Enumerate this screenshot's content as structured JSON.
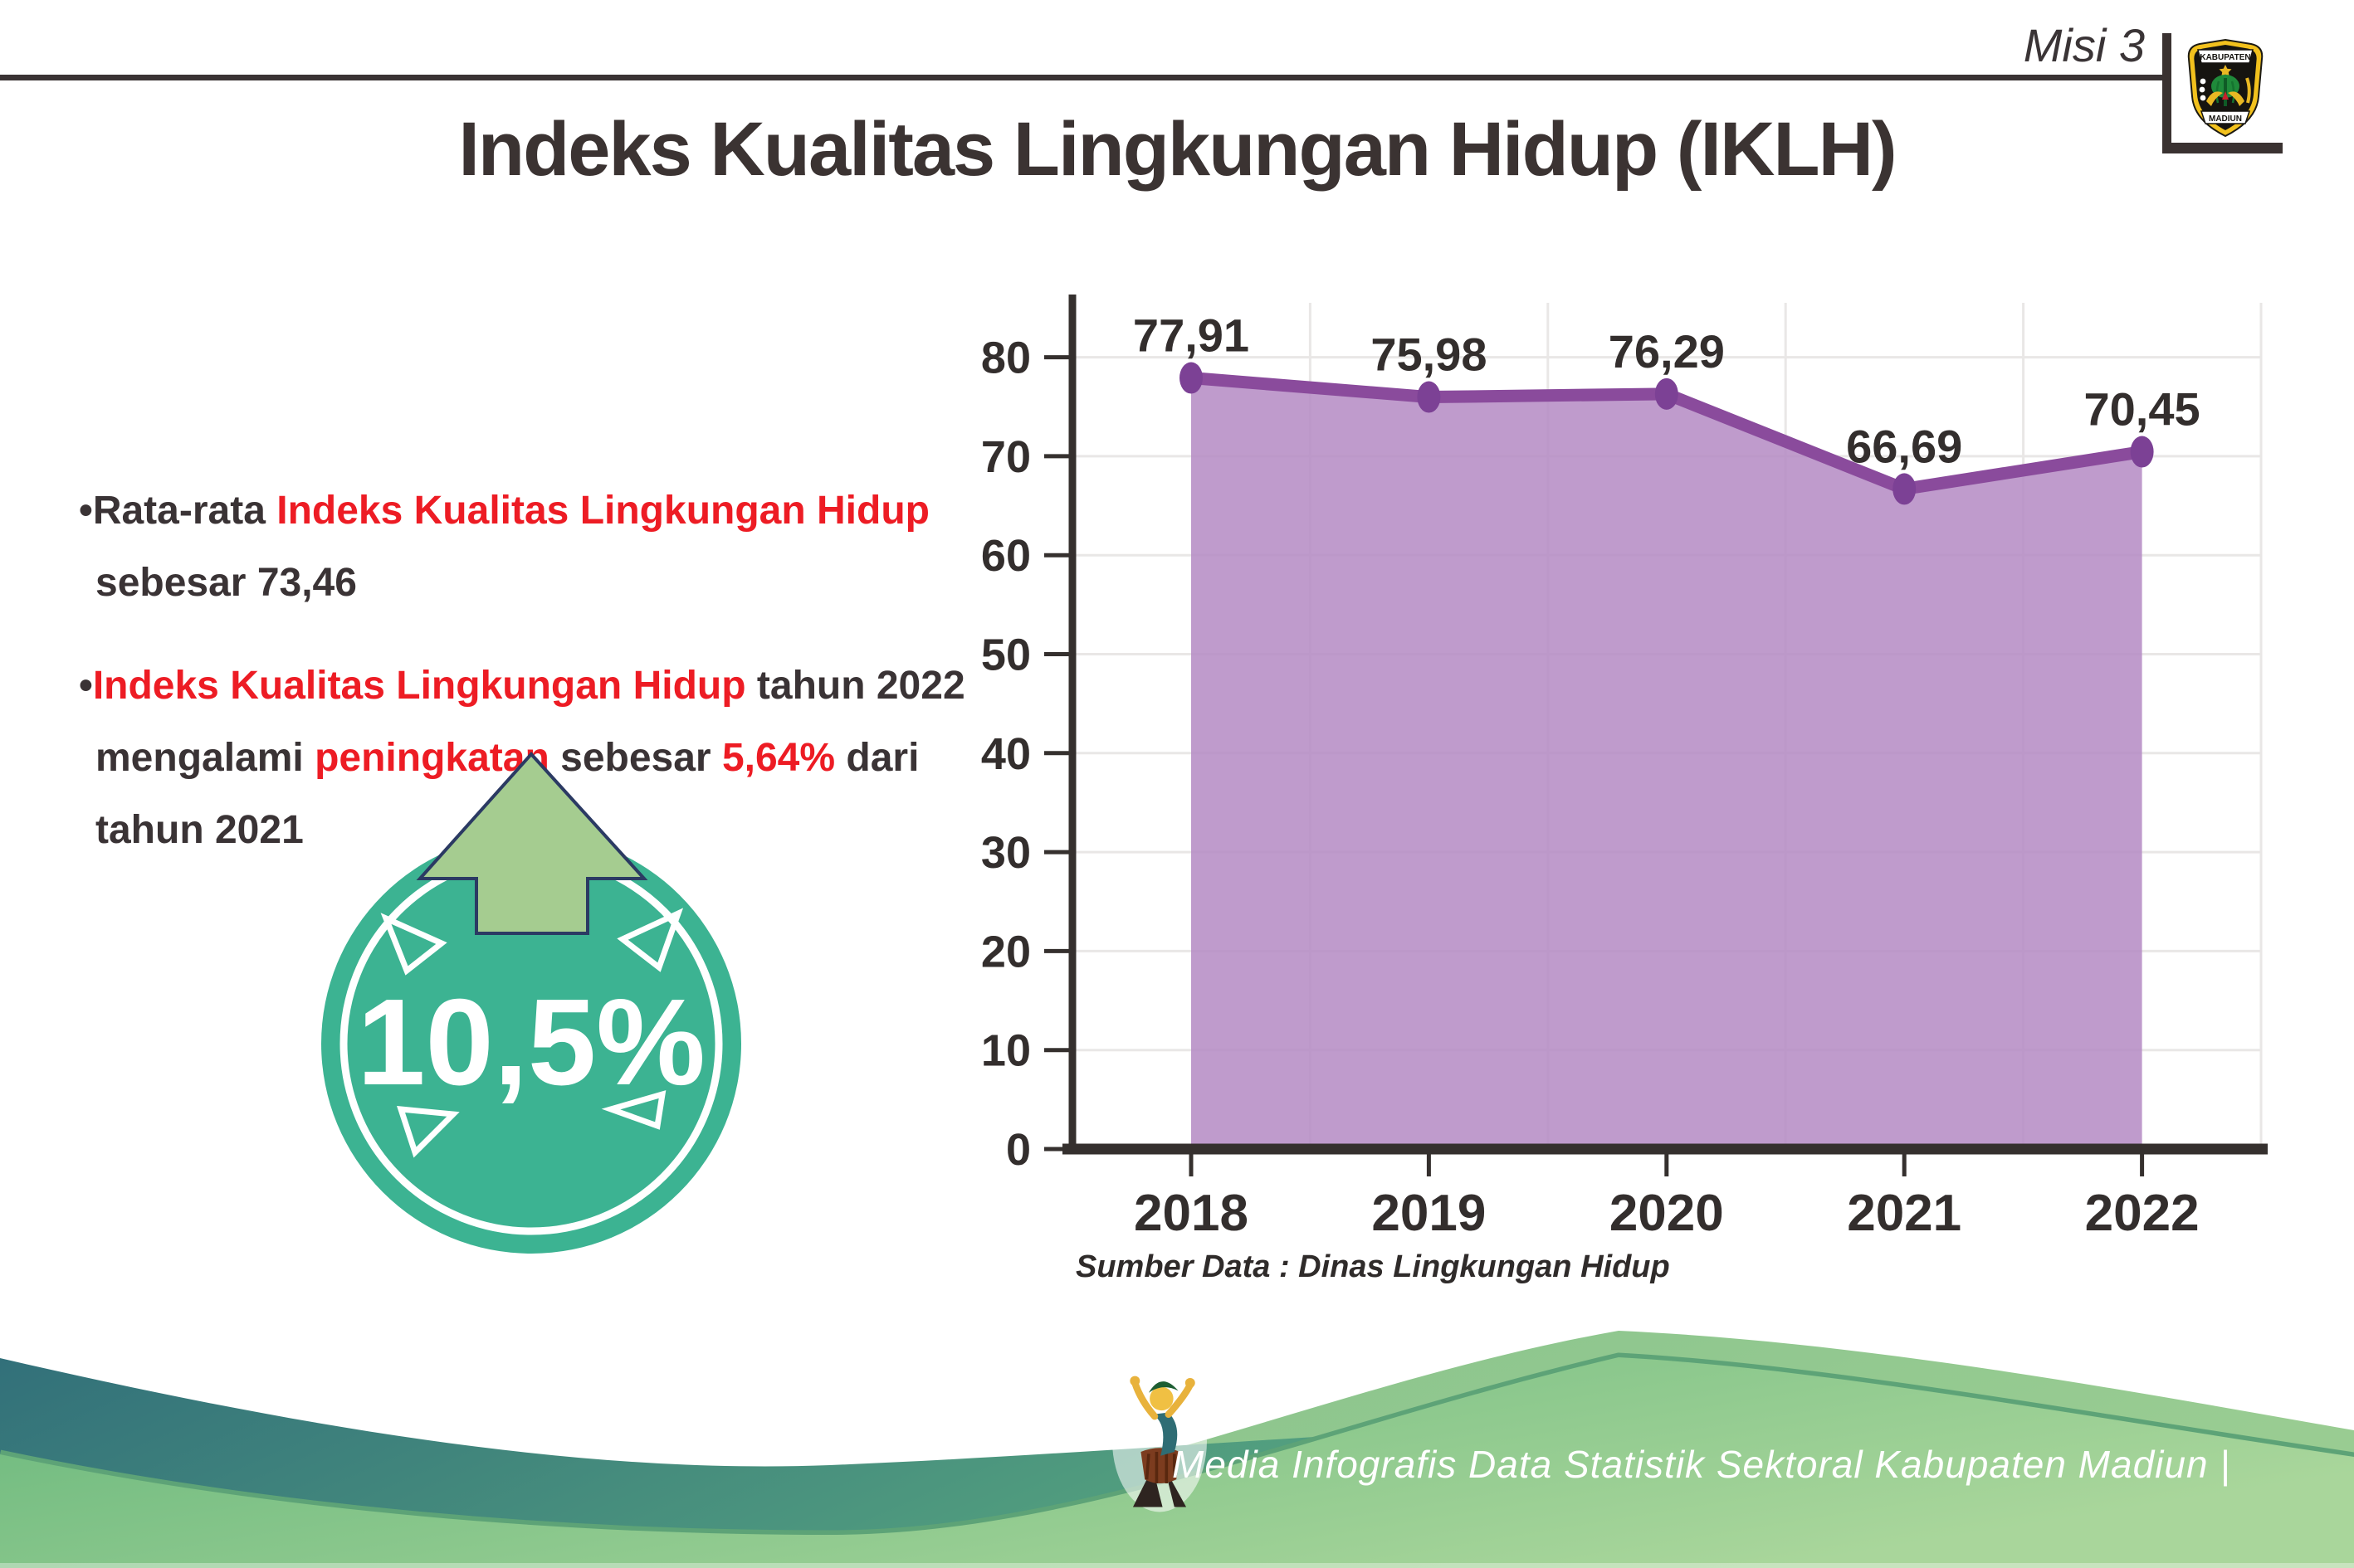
{
  "header": {
    "mission": "Misi 3",
    "emblem": {
      "top": "KABUPATEN",
      "bottom": "MADIUN"
    }
  },
  "title": "Indeks Kualitas Lingkungan Hidup (IKLH)",
  "bullets": [
    {
      "lines": [
        [
          {
            "t": "Rata-rata ",
            "c": "dark"
          },
          {
            "t": "Indeks Kualitas Lingkungan Hidup",
            "c": "red"
          }
        ],
        [
          {
            "t": "sebesar 73,46",
            "c": "dark"
          }
        ]
      ]
    },
    {
      "lines": [
        [
          {
            "t": "Indeks Kualitas Lingkungan Hidup",
            "c": "red"
          },
          {
            "t": " tahun 2022",
            "c": "dark"
          }
        ],
        [
          {
            "t": "mengalami ",
            "c": "dark"
          },
          {
            "t": "peningkatan",
            "c": "red"
          },
          {
            "t": " sebesar ",
            "c": "dark"
          },
          {
            "t": "5,64%",
            "c": "red"
          },
          {
            "t": " dari",
            "c": "dark"
          }
        ],
        [
          {
            "t": "tahun 2021",
            "c": "dark"
          }
        ]
      ]
    }
  ],
  "badge": {
    "value": "10,5%"
  },
  "chart_data": {
    "type": "area",
    "title": "",
    "xlabel": "",
    "ylabel": "",
    "categories": [
      "2018",
      "2019",
      "2020",
      "2021",
      "2022"
    ],
    "values": [
      77.91,
      75.98,
      76.29,
      66.69,
      70.45
    ],
    "point_labels": [
      "77,91",
      "75,98",
      "76,29",
      "66,69",
      "70,45"
    ],
    "y_ticks": [
      0,
      10,
      20,
      30,
      40,
      50,
      60,
      70,
      80
    ],
    "ylim": [
      0,
      85
    ],
    "grid": true,
    "legend": "none",
    "line_color": "#8a4b9c",
    "fill_color": "#b58cc4",
    "marker_color": "#7c4195",
    "axis_color": "#35302e",
    "grid_color": "#e9e7e6",
    "label_color": "#332e2d"
  },
  "source_note": "Sumber Data : Dinas Lingkungan Hidup",
  "footer": {
    "text": "Media Infografis Data Statistik Sektoral Kabupaten Madiun |"
  },
  "colors": {
    "accent_red": "#ed1c24",
    "text_dark": "#3a3335",
    "badge_teal": "#3cb392",
    "arrow_green": "#a5cc90",
    "arrow_outline": "#2b3a63",
    "footer_teal_dark": "#32707a",
    "footer_teal_light": "#53a07f",
    "footer_green_dark": "#68b77c",
    "footer_green_light": "#a9d69b"
  }
}
